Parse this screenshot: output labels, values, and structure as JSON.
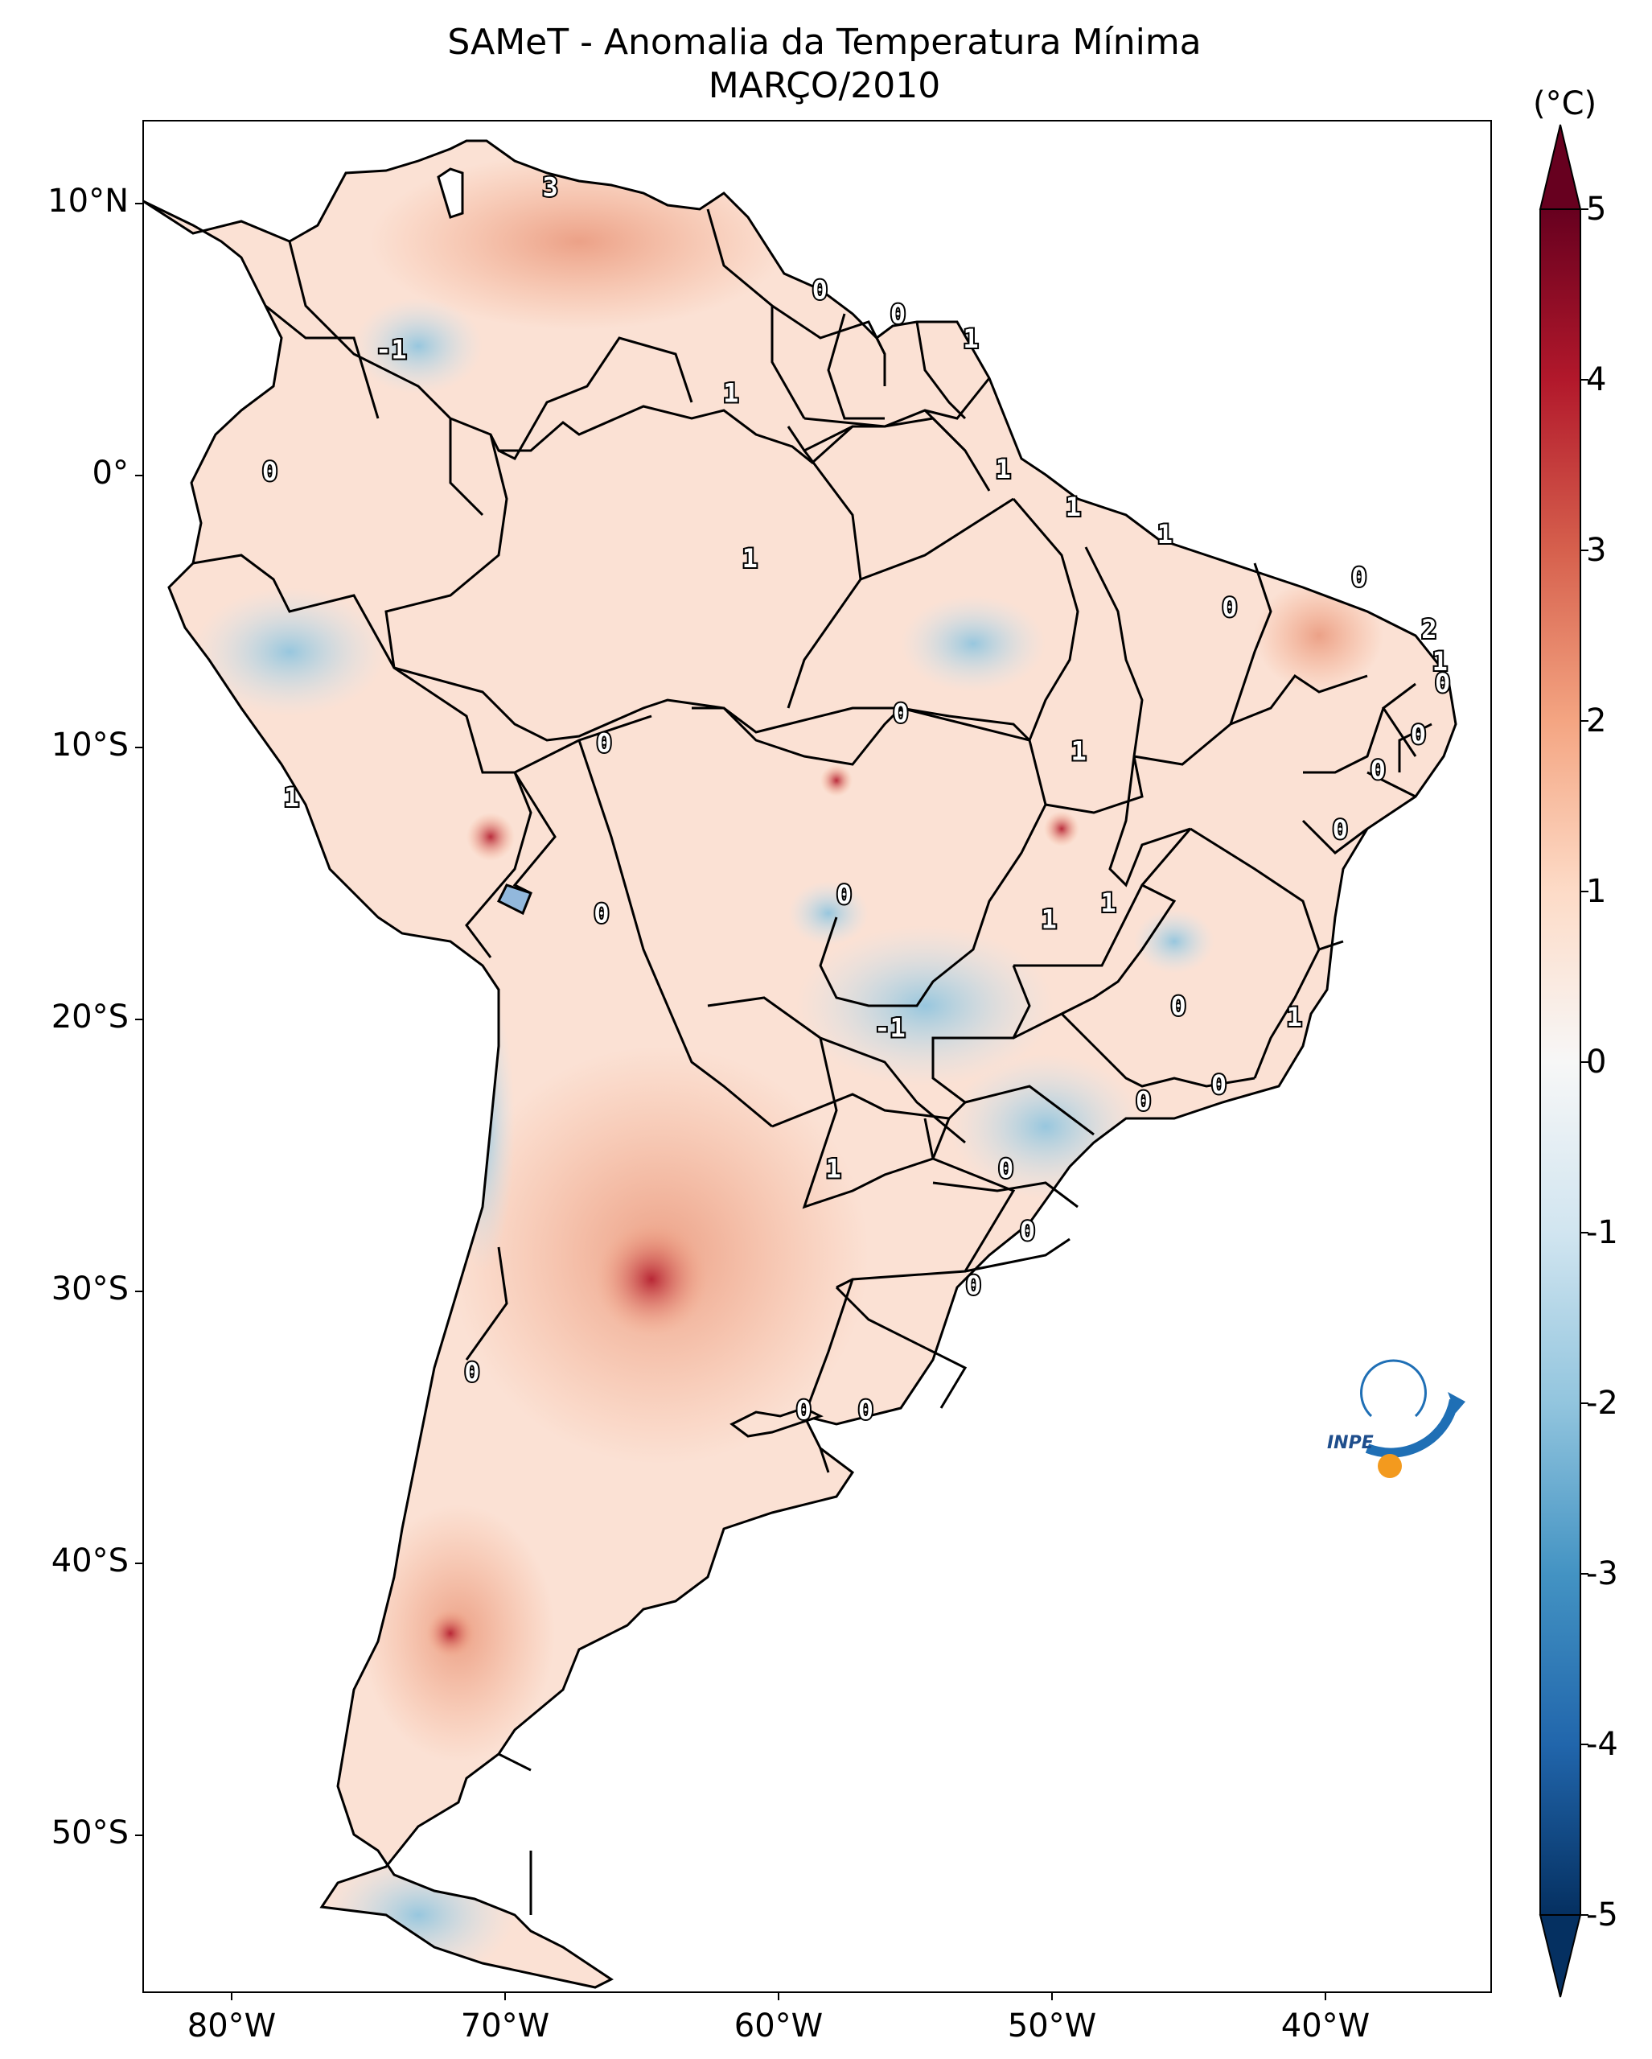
{
  "title": "SAMeT - Anomalia da Temperatura Mínima",
  "subtitle": "MARÇO/2010",
  "colorbar": {
    "unit": "(°C)",
    "ticks": [
      "5",
      "4",
      "3",
      "2",
      "1",
      "0",
      "-1",
      "-2",
      "-3",
      "-4",
      "-5"
    ],
    "min": -5,
    "max": 5,
    "colors": [
      "#053061",
      "#2166ac",
      "#4393c3",
      "#92c5de",
      "#d1e5f0",
      "#f7f7f7",
      "#fddbc7",
      "#f4a582",
      "#d6604d",
      "#b2182b",
      "#67001f"
    ]
  },
  "axes": {
    "lon_labels": [
      "80°W",
      "70°W",
      "60°W",
      "50°W",
      "40°W"
    ],
    "lat_labels": [
      "10°N",
      "0°",
      "10°S",
      "20°S",
      "30°S",
      "40°S",
      "50°S"
    ]
  },
  "contour_labels": [
    {
      "text": "3",
      "lon": -67.9,
      "lat": 10.5
    },
    {
      "text": "0",
      "lon": -57.9,
      "lat": 6.7
    },
    {
      "text": "0",
      "lon": -55.0,
      "lat": 5.8
    },
    {
      "text": "1",
      "lon": -52.3,
      "lat": 4.9
    },
    {
      "text": "-1",
      "lon": -73.8,
      "lat": 4.5
    },
    {
      "text": "1",
      "lon": -61.2,
      "lat": 2.9
    },
    {
      "text": "0",
      "lon": -78.3,
      "lat": 0.0
    },
    {
      "text": "1",
      "lon": -51.1,
      "lat": 0.1
    },
    {
      "text": "1",
      "lon": -48.5,
      "lat": -1.3
    },
    {
      "text": "1",
      "lon": -60.5,
      "lat": -3.2
    },
    {
      "text": "1",
      "lon": -45.1,
      "lat": -2.3
    },
    {
      "text": "0",
      "lon": -37.9,
      "lat": -3.9
    },
    {
      "text": "0",
      "lon": -42.7,
      "lat": -5.0
    },
    {
      "text": "2",
      "lon": -35.3,
      "lat": -5.8
    },
    {
      "text": "1",
      "lon": -34.9,
      "lat": -7.0
    },
    {
      "text": "0",
      "lon": -34.8,
      "lat": -7.8
    },
    {
      "text": "0",
      "lon": -54.9,
      "lat": -8.9
    },
    {
      "text": "0",
      "lon": -35.7,
      "lat": -9.7
    },
    {
      "text": "0",
      "lon": -65.9,
      "lat": -10.0
    },
    {
      "text": "0",
      "lon": -37.2,
      "lat": -11.0
    },
    {
      "text": "1",
      "lon": -48.3,
      "lat": -10.3
    },
    {
      "text": "1",
      "lon": -77.5,
      "lat": -12.0
    },
    {
      "text": "0",
      "lon": -38.6,
      "lat": -13.2
    },
    {
      "text": "0",
      "lon": -57.0,
      "lat": -15.6
    },
    {
      "text": "1",
      "lon": -47.2,
      "lat": -15.9
    },
    {
      "text": "1",
      "lon": -49.4,
      "lat": -16.5
    },
    {
      "text": "0",
      "lon": -66.0,
      "lat": -16.3
    },
    {
      "text": "0",
      "lon": -44.6,
      "lat": -19.7
    },
    {
      "text": "-1",
      "lon": -55.3,
      "lat": -20.5
    },
    {
      "text": "1",
      "lon": -40.3,
      "lat": -20.1
    },
    {
      "text": "0",
      "lon": -43.1,
      "lat": -22.6
    },
    {
      "text": "0",
      "lon": -45.9,
      "lat": -23.2
    },
    {
      "text": "1",
      "lon": -57.4,
      "lat": -25.7
    },
    {
      "text": "0",
      "lon": -51.0,
      "lat": -25.7
    },
    {
      "text": "0",
      "lon": -50.2,
      "lat": -28.0
    },
    {
      "text": "0",
      "lon": -52.2,
      "lat": -30.0
    },
    {
      "text": "0",
      "lon": -70.8,
      "lat": -33.2
    },
    {
      "text": "0",
      "lon": -58.5,
      "lat": -34.6
    },
    {
      "text": "0",
      "lon": -56.2,
      "lat": -34.6
    }
  ]
}
